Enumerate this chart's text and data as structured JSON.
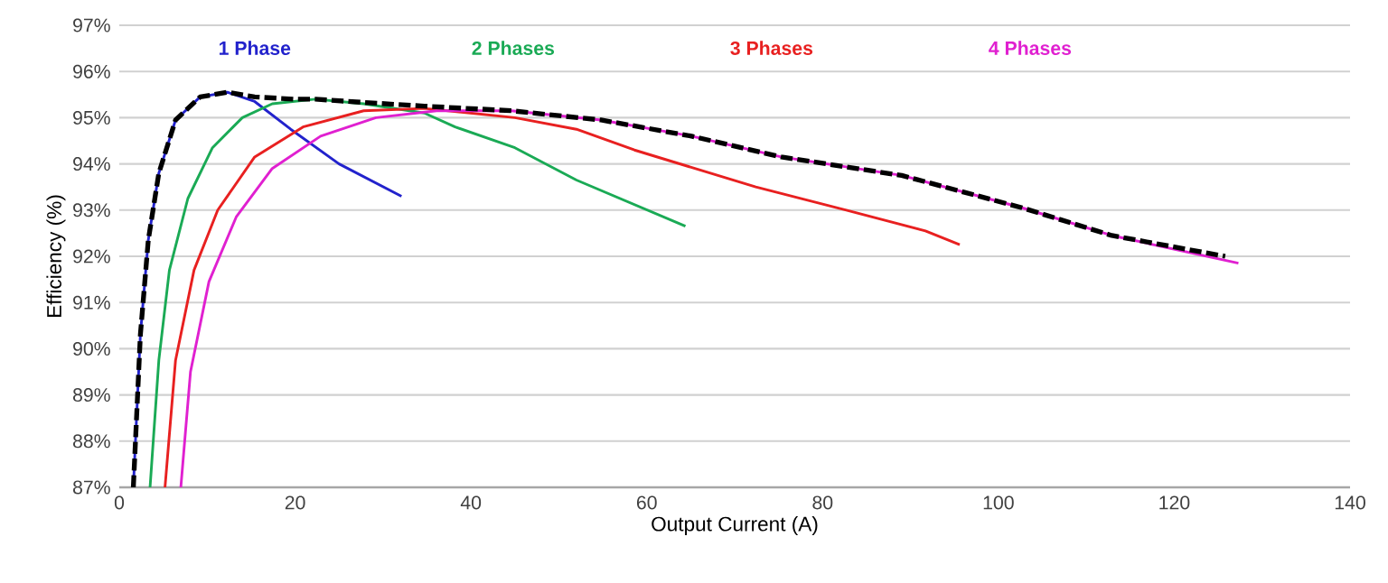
{
  "chart_data": {
    "type": "line",
    "xlabel": "Output Current (A)",
    "ylabel": "Efficiency (%)",
    "xlim": [
      0,
      140
    ],
    "xticks": [
      0,
      20,
      40,
      60,
      80,
      100,
      120,
      140
    ],
    "ylim": [
      87,
      97
    ],
    "yticks": [
      {
        "value": 87,
        "label": "87%"
      },
      {
        "value": 88,
        "label": "88%"
      },
      {
        "value": 89,
        "label": "89%"
      },
      {
        "value": 90,
        "label": "90%"
      },
      {
        "value": 91,
        "label": "91%"
      },
      {
        "value": 92,
        "label": "92%"
      },
      {
        "value": 93,
        "label": "93%"
      },
      {
        "value": 94,
        "label": "94%"
      },
      {
        "value": 95,
        "label": "95%"
      },
      {
        "value": 96,
        "label": "96%"
      },
      {
        "value": 97,
        "label": "97%"
      }
    ],
    "grid": "y",
    "legend": "top",
    "line_style": "solid",
    "series": [
      {
        "name": "1 Phase",
        "color": "#2222cc",
        "x": [
          1.6,
          2.4,
          3.3,
          4.5,
          6.4,
          9.2,
          12.3,
          15.4,
          19.5,
          25.0,
          32.1
        ],
        "values": [
          87,
          90.3,
          92.35,
          93.8,
          94.95,
          95.45,
          95.55,
          95.35,
          94.75,
          94.0,
          93.3
        ]
      },
      {
        "name": "2 Phases",
        "color": "#1aaa55",
        "x": [
          3.5,
          4.5,
          5.7,
          7.8,
          10.6,
          14.0,
          17.4,
          22.3,
          27.8,
          34.7,
          38.2,
          45.0,
          52.0,
          64.4
        ],
        "values": [
          87,
          89.75,
          91.7,
          93.25,
          94.35,
          95.0,
          95.3,
          95.4,
          95.3,
          95.1,
          94.8,
          94.35,
          93.65,
          92.65
        ]
      },
      {
        "name": "3 Phases",
        "color": "#e82020",
        "x": [
          5.2,
          6.4,
          8.5,
          11.2,
          15.4,
          20.9,
          27.8,
          34.7,
          45.0,
          52.0,
          58.6,
          72.4,
          82.7,
          91.7,
          95.6
        ],
        "values": [
          87,
          89.75,
          91.7,
          93.0,
          94.15,
          94.8,
          95.15,
          95.2,
          95.0,
          94.75,
          94.3,
          93.5,
          93.0,
          92.55,
          92.25
        ]
      },
      {
        "name": "4 Phases",
        "color": "#e020d0",
        "x": [
          7.0,
          8.1,
          10.2,
          13.3,
          17.4,
          22.9,
          29.2,
          36.1,
          44.6,
          54.8,
          65.1,
          75.3,
          89.0,
          102.7,
          112.9,
          127.3
        ],
        "values": [
          87,
          89.5,
          91.45,
          92.85,
          93.9,
          94.6,
          95.0,
          95.15,
          95.15,
          94.95,
          94.6,
          94.15,
          93.75,
          93.05,
          92.45,
          91.85
        ]
      },
      {
        "color": "#000000",
        "line_style": "dashed",
        "x": [
          1.6,
          2.4,
          3.3,
          4.5,
          6.4,
          9.2,
          12.3,
          15.4,
          20.0,
          22.3,
          27.8,
          34.7,
          44.6,
          54.8,
          65.1,
          75.3,
          89.0,
          102.7,
          112.9,
          125.8
        ],
        "values": [
          87,
          90.3,
          92.35,
          93.8,
          94.95,
          95.45,
          95.55,
          95.45,
          95.4,
          95.4,
          95.33,
          95.25,
          95.15,
          94.95,
          94.6,
          94.15,
          93.75,
          93.05,
          92.45,
          92.0
        ]
      }
    ]
  }
}
